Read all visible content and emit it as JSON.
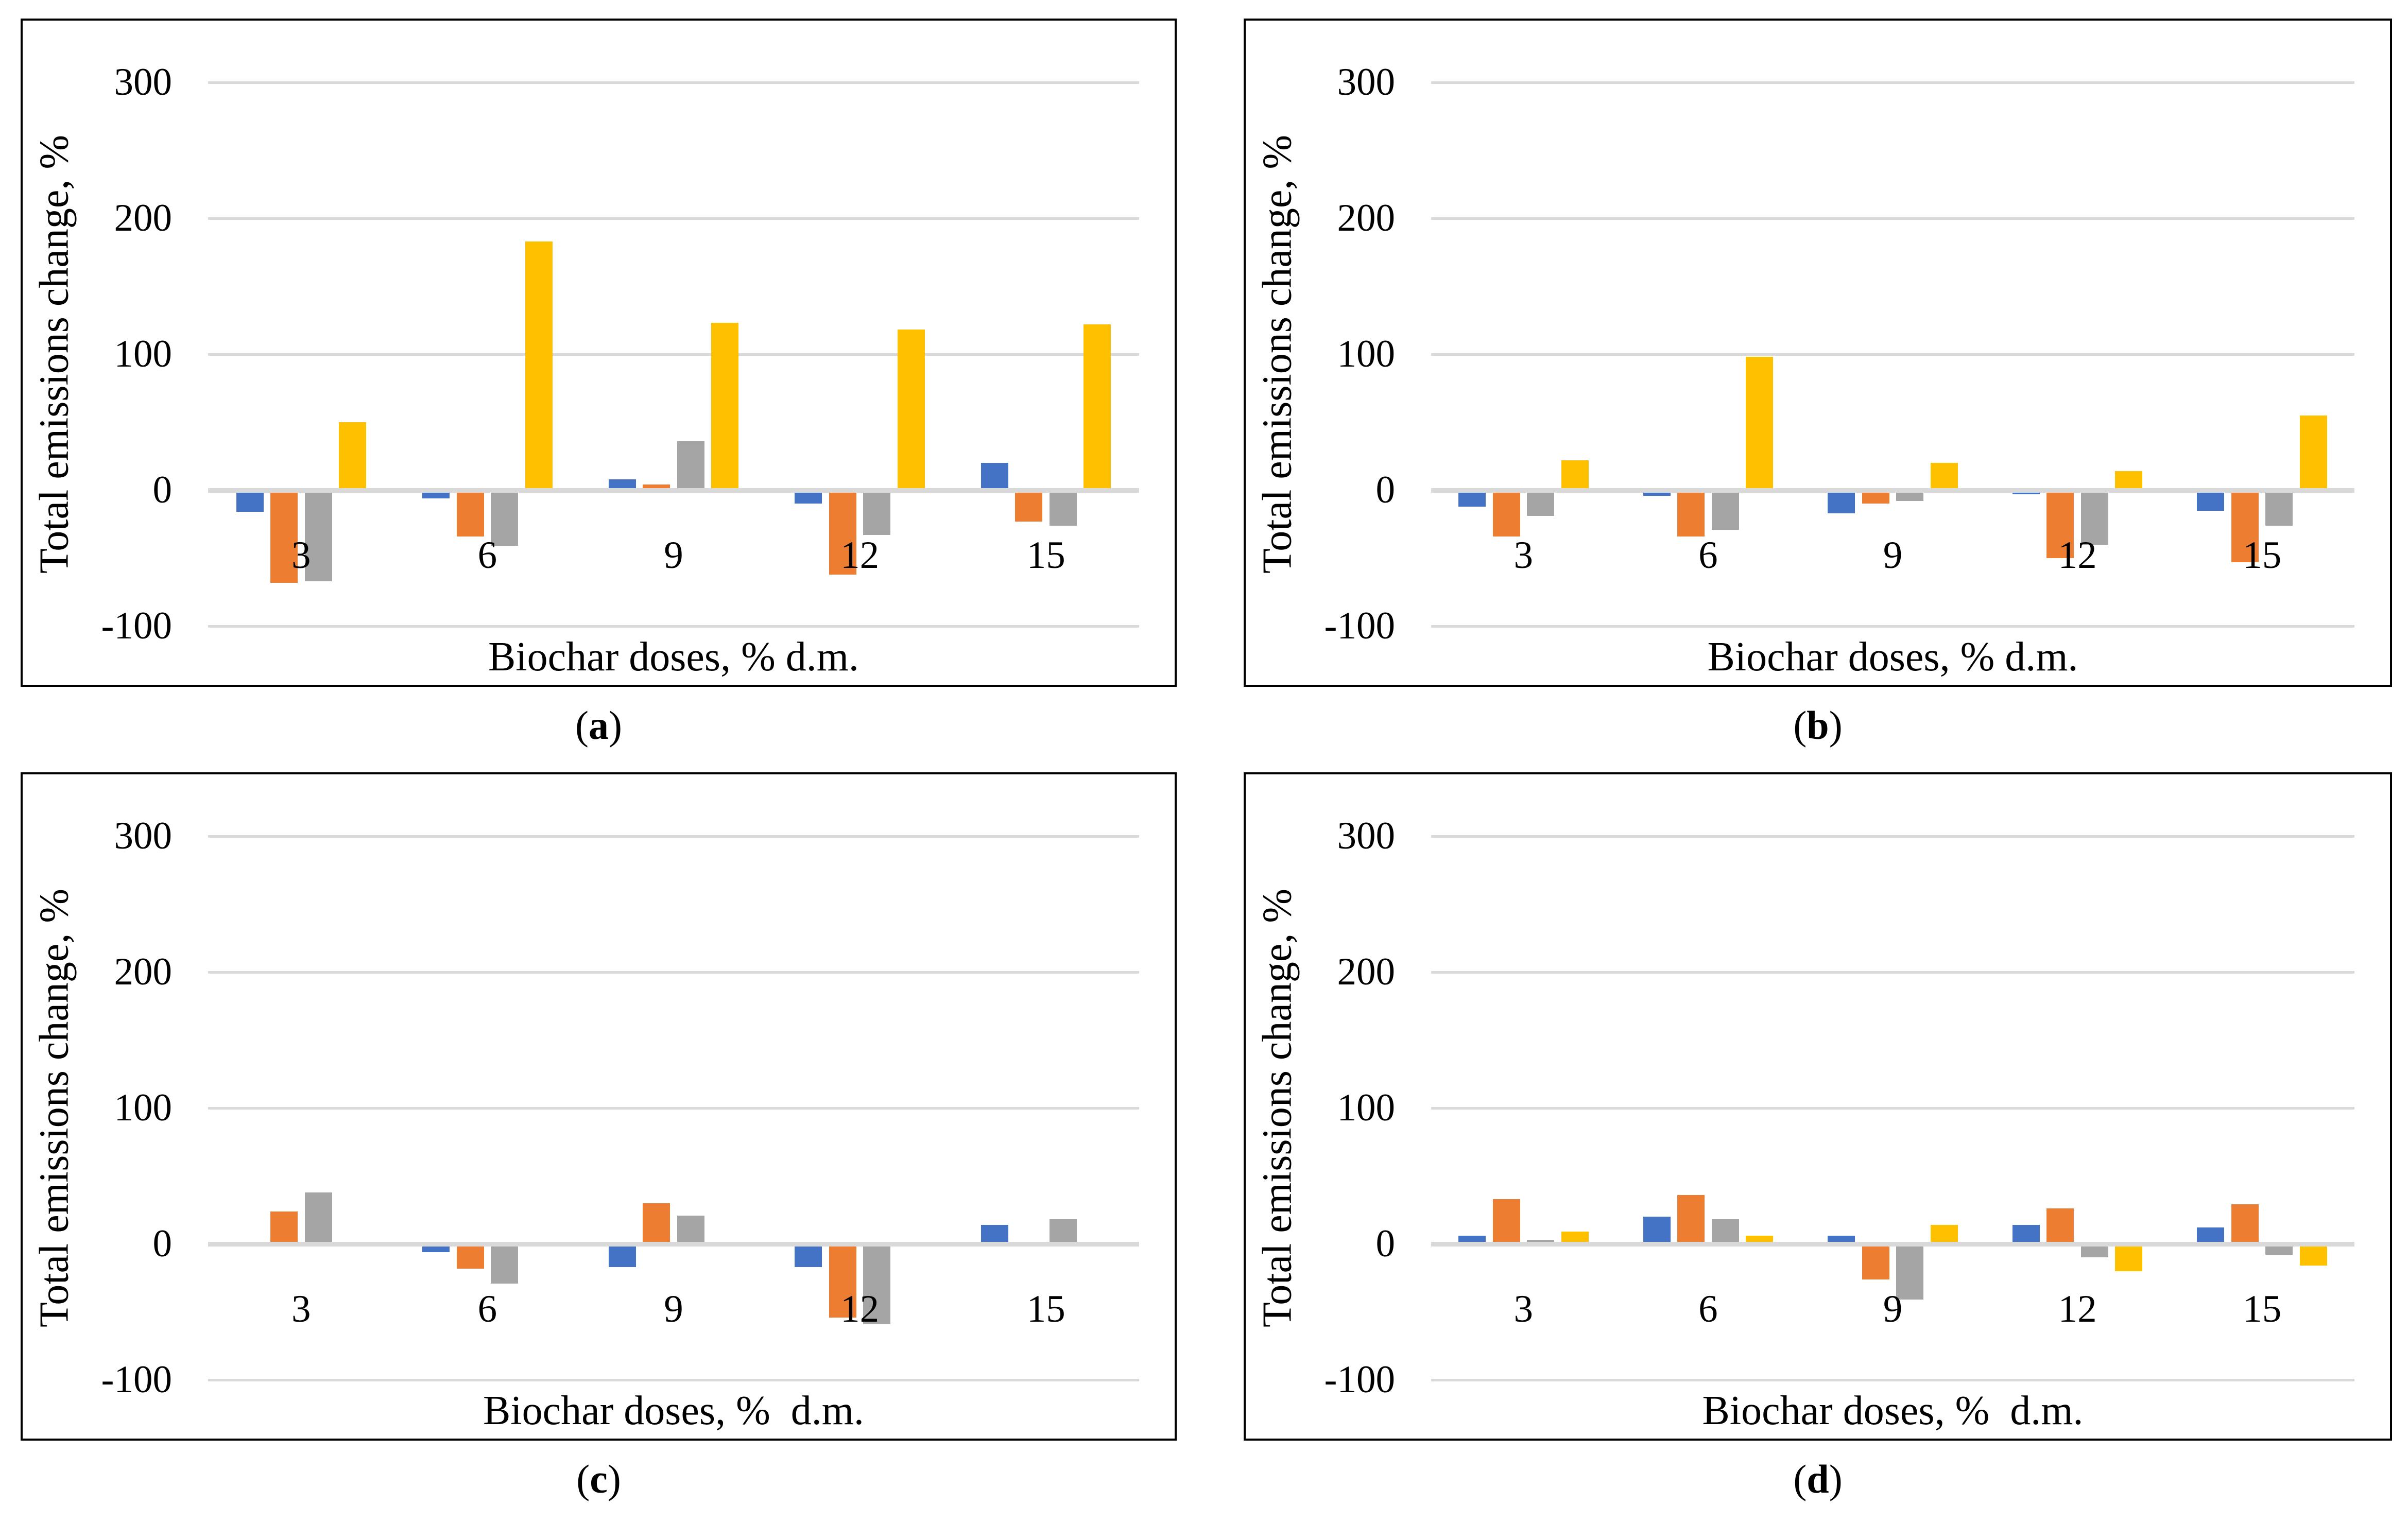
{
  "figure": {
    "background": "#ffffff",
    "border_color": "#000000",
    "gridline_color": "#D9D9D9",
    "series_colors": {
      "blue": "#4472C4",
      "orange": "#ED7D31",
      "gray": "#A5A5A5",
      "yellow": "#FFC000"
    }
  },
  "chart_data": [
    {
      "panel": "a",
      "caption": "(a)",
      "type": "bar",
      "title": "",
      "ylabel": "Total emissions change, %",
      "xlabel": "Biochar doses, % d.m.",
      "categories": [
        "3",
        "6",
        "9",
        "12",
        "15"
      ],
      "ylim": [
        -100,
        300
      ],
      "yticks": [
        300,
        200,
        100,
        0,
        -100
      ],
      "grid": true,
      "legend_position": "none",
      "series": [
        {
          "name": "series-blue",
          "color": "#4472C4",
          "values": [
            -16,
            -6,
            8,
            -10,
            20
          ]
        },
        {
          "name": "series-orange",
          "color": "#ED7D31",
          "values": [
            -68,
            -34,
            4,
            -62,
            -23
          ]
        },
        {
          "name": "series-gray",
          "color": "#A5A5A5",
          "values": [
            -67,
            -41,
            36,
            -33,
            -26
          ]
        },
        {
          "name": "series-yellow",
          "color": "#FFC000",
          "values": [
            50,
            183,
            123,
            118,
            122
          ]
        }
      ]
    },
    {
      "panel": "b",
      "caption": "(b)",
      "type": "bar",
      "title": "",
      "ylabel": "Total emissions change, %",
      "xlabel": "Biochar doses, % d.m.",
      "categories": [
        "3",
        "6",
        "9",
        "12",
        "15"
      ],
      "ylim": [
        -100,
        300
      ],
      "yticks": [
        300,
        200,
        100,
        0,
        -100
      ],
      "grid": true,
      "legend_position": "none",
      "series": [
        {
          "name": "series-blue",
          "color": "#4472C4",
          "values": [
            -12,
            -4,
            -17,
            -3,
            -15
          ]
        },
        {
          "name": "series-orange",
          "color": "#ED7D31",
          "values": [
            -34,
            -34,
            -10,
            -50,
            -53
          ]
        },
        {
          "name": "series-gray",
          "color": "#A5A5A5",
          "values": [
            -19,
            -29,
            -8,
            -40,
            -26
          ]
        },
        {
          "name": "series-yellow",
          "color": "#FFC000",
          "values": [
            22,
            98,
            20,
            14,
            55
          ]
        }
      ]
    },
    {
      "panel": "c",
      "caption": "(c)",
      "type": "bar",
      "title": "",
      "ylabel": "Total emissions change, %",
      "xlabel": "Biochar doses, %  d.m.",
      "categories": [
        "3",
        "6",
        "9",
        "12",
        "15"
      ],
      "ylim": [
        -100,
        300
      ],
      "yticks": [
        300,
        200,
        100,
        0,
        -100
      ],
      "grid": true,
      "legend_position": "none",
      "series": [
        {
          "name": "series-blue",
          "color": "#4472C4",
          "values": [
            0,
            -6,
            -17,
            -17,
            14
          ]
        },
        {
          "name": "series-orange",
          "color": "#ED7D31",
          "values": [
            24,
            -18,
            30,
            -54,
            0
          ]
        },
        {
          "name": "series-gray",
          "color": "#A5A5A5",
          "values": [
            38,
            -29,
            21,
            -59,
            18
          ]
        },
        {
          "name": "series-yellow",
          "color": "#FFC000",
          "values": [
            0,
            0,
            0,
            0,
            0
          ]
        }
      ]
    },
    {
      "panel": "d",
      "caption": "(d)",
      "type": "bar",
      "title": "",
      "ylabel": "Total emissions change, %",
      "xlabel": "Biochar doses, %  d.m.",
      "categories": [
        "3",
        "6",
        "9",
        "12",
        "15"
      ],
      "ylim": [
        -100,
        300
      ],
      "yticks": [
        300,
        200,
        100,
        0,
        -100
      ],
      "grid": true,
      "legend_position": "none",
      "series": [
        {
          "name": "series-blue",
          "color": "#4472C4",
          "values": [
            6,
            20,
            6,
            14,
            12
          ]
        },
        {
          "name": "series-orange",
          "color": "#ED7D31",
          "values": [
            33,
            36,
            -26,
            26,
            29
          ]
        },
        {
          "name": "series-gray",
          "color": "#A5A5A5",
          "values": [
            3,
            18,
            -41,
            -10,
            -8
          ]
        },
        {
          "name": "series-yellow",
          "color": "#FFC000",
          "values": [
            9,
            6,
            14,
            -20,
            -16
          ]
        }
      ]
    }
  ]
}
